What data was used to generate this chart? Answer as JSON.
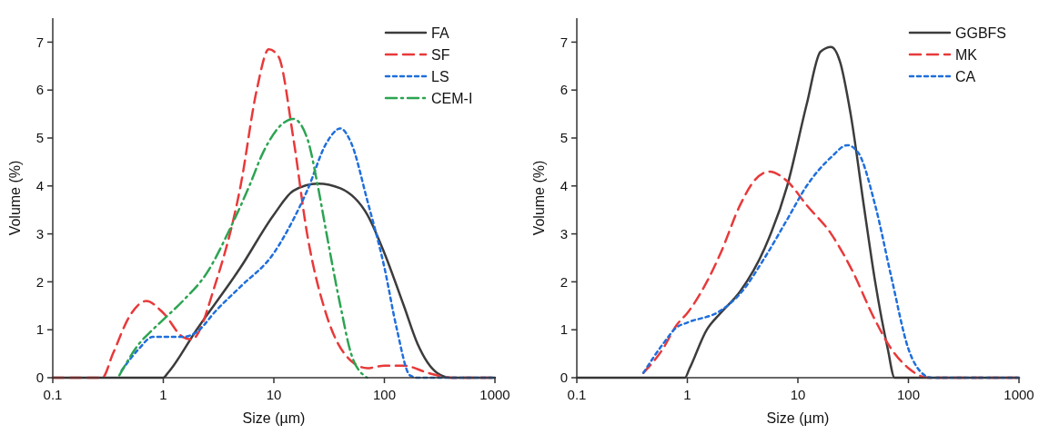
{
  "chart_data": [
    {
      "type": "line",
      "xlabel": "Size (µm)",
      "ylabel": "Volume (%)",
      "log": "x",
      "xlim": [
        0.1,
        1000
      ],
      "xticks": [
        0.1,
        1,
        10,
        100,
        1000
      ],
      "ylim": [
        0,
        7.5
      ],
      "yticks": [
        0,
        1,
        2,
        3,
        4,
        5,
        6,
        7
      ],
      "legend": "top right",
      "series": [
        {
          "name": "FA",
          "color": "#3c3c3c",
          "line_style": "solid",
          "x": [
            0.1,
            1,
            1.1,
            2,
            5,
            10,
            15,
            25,
            40,
            70,
            100,
            150,
            200,
            300,
            400,
            1000
          ],
          "values": [
            0,
            0,
            0.1,
            1.0,
            2.3,
            3.4,
            3.9,
            4.05,
            3.95,
            3.4,
            2.6,
            1.5,
            0.7,
            0.1,
            0,
            0
          ]
        },
        {
          "name": "SF",
          "color": "#e8393a",
          "line_style": "dashed",
          "x": [
            0.1,
            0.28,
            0.35,
            0.5,
            0.7,
            1,
            1.5,
            1.8,
            3,
            5,
            7,
            9,
            11,
            15,
            20,
            30,
            50,
            70,
            100,
            150,
            250,
            400,
            1000
          ],
          "values": [
            0,
            0,
            0.5,
            1.3,
            1.6,
            1.35,
            0.85,
            0.8,
            2.0,
            4.0,
            6.0,
            6.85,
            6.7,
            5.0,
            3.0,
            1.3,
            0.35,
            0.2,
            0.25,
            0.25,
            0.1,
            0,
            0
          ]
        },
        {
          "name": "LS",
          "color": "#1f6fdc",
          "line_style": "dotted",
          "x": [
            0.42,
            0.6,
            0.8,
            1.5,
            2,
            3,
            5,
            10,
            15,
            20,
            30,
            40,
            50,
            70,
            100,
            130,
            170,
            200,
            1000
          ],
          "values": [
            0.15,
            0.6,
            0.85,
            0.85,
            0.95,
            1.4,
            1.9,
            2.6,
            3.3,
            3.9,
            4.9,
            5.2,
            4.9,
            3.7,
            2.3,
            1.0,
            0.05,
            0,
            0
          ]
        },
        {
          "name": "CEM-I",
          "color": "#2ca452",
          "line_style": "dashdot",
          "x": [
            0.4,
            0.6,
            0.8,
            1.1,
            1.5,
            2.5,
            4,
            6,
            8,
            12,
            15,
            20,
            25,
            30,
            40,
            50,
            65,
            70
          ],
          "values": [
            0.05,
            0.7,
            1.0,
            1.3,
            1.6,
            2.2,
            3.1,
            4.0,
            4.7,
            5.3,
            5.4,
            5.0,
            4.0,
            3.0,
            1.5,
            0.5,
            0.05,
            0
          ]
        }
      ]
    },
    {
      "type": "line",
      "xlabel": "Size (µm)",
      "ylabel": "Volume (%)",
      "log": "x",
      "xlim": [
        0.1,
        1000
      ],
      "xticks": [
        0.1,
        1,
        10,
        100,
        1000
      ],
      "ylim": [
        0,
        7.5
      ],
      "yticks": [
        0,
        1,
        2,
        3,
        4,
        5,
        6,
        7
      ],
      "legend": "top right",
      "series": [
        {
          "name": "GGBFS",
          "color": "#3c3c3c",
          "line_style": "solid",
          "x": [
            0.1,
            0.95,
            1.05,
            1.5,
            2,
            3,
            5,
            8,
            12,
            16,
            20,
            24,
            30,
            40,
            50,
            65,
            75,
            1000
          ],
          "values": [
            0,
            0,
            0.2,
            1.0,
            1.35,
            1.8,
            2.7,
            4.0,
            5.7,
            6.8,
            6.9,
            6.6,
            5.5,
            3.5,
            2.0,
            0.6,
            0,
            0
          ]
        },
        {
          "name": "MK",
          "color": "#e8393a",
          "line_style": "dashed",
          "x": [
            0.4,
            0.6,
            0.8,
            1,
            1.5,
            2,
            3,
            4,
            5.5,
            8,
            12,
            20,
            30,
            50,
            70,
            100,
            150,
            1000
          ],
          "values": [
            0.1,
            0.6,
            1.1,
            1.35,
            2.0,
            2.6,
            3.6,
            4.1,
            4.3,
            4.1,
            3.6,
            3.0,
            2.3,
            1.2,
            0.6,
            0.2,
            0,
            0
          ]
        },
        {
          "name": "CA",
          "color": "#1f6fdc",
          "line_style": "dotted",
          "x": [
            0.4,
            0.6,
            0.8,
            1,
            2,
            3,
            5,
            8,
            12,
            20,
            28,
            35,
            50,
            70,
            100,
            140,
            160,
            1000
          ],
          "values": [
            0.1,
            0.7,
            1.05,
            1.15,
            1.4,
            1.75,
            2.5,
            3.3,
            4.0,
            4.6,
            4.85,
            4.7,
            3.6,
            2.1,
            0.6,
            0.05,
            0,
            0
          ]
        }
      ]
    }
  ]
}
